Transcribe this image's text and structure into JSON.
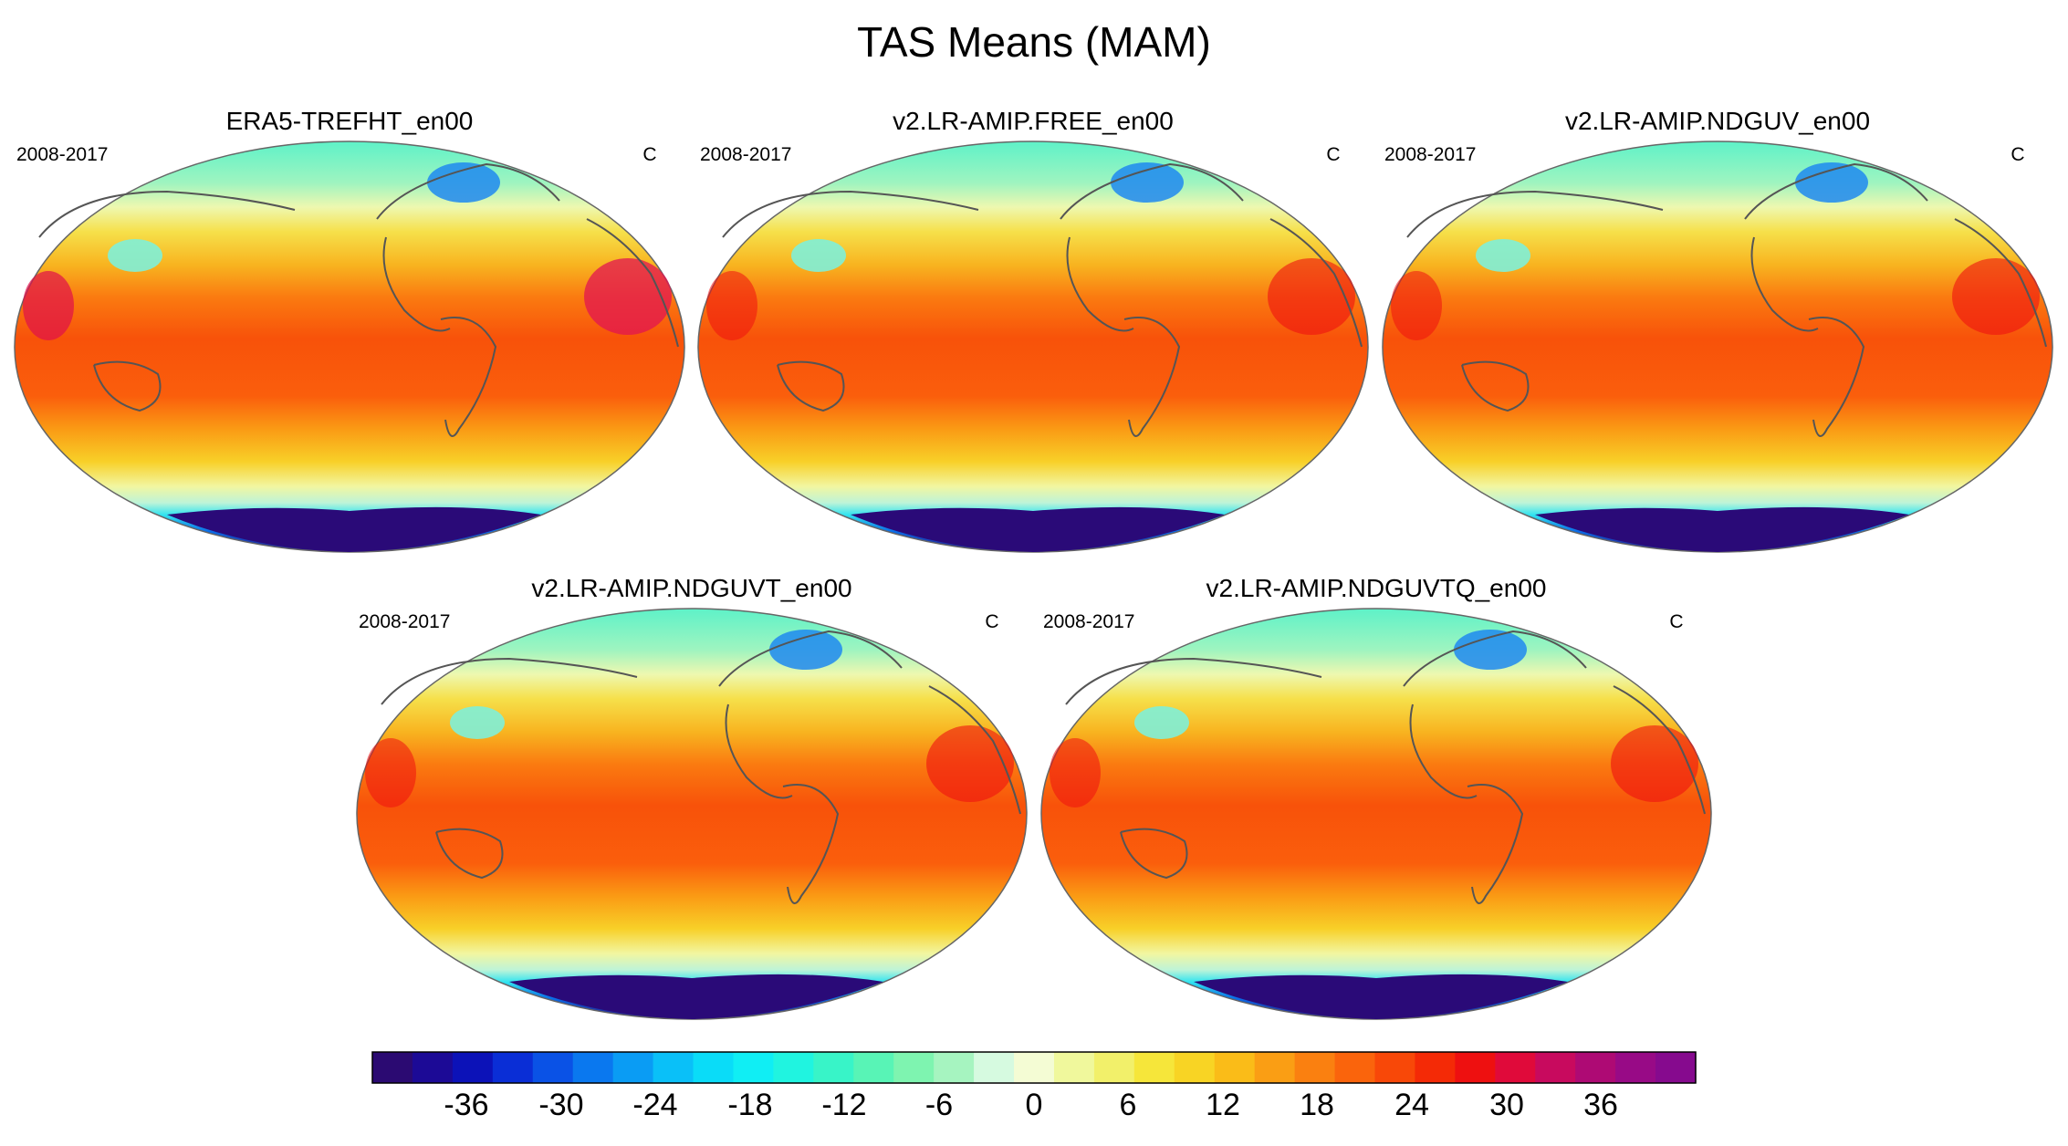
{
  "figure": {
    "title": "TAS Means (MAM)"
  },
  "panels": [
    {
      "title": "ERA5-TREFHT_en00",
      "period": "2008-2017",
      "units": "C"
    },
    {
      "title": "v2.LR-AMIP.FREE_en00",
      "period": "2008-2017",
      "units": "C"
    },
    {
      "title": "v2.LR-AMIP.NDGUV_en00",
      "period": "2008-2017",
      "units": "C"
    },
    {
      "title": "v2.LR-AMIP.NDGUVT_en00",
      "period": "2008-2017",
      "units": "C"
    },
    {
      "title": "v2.LR-AMIP.NDGUVTQ_en00",
      "period": "2008-2017",
      "units": "C"
    }
  ],
  "colorbar": {
    "tick_labels": [
      "-36",
      "-30",
      "-24",
      "-18",
      "-12",
      "-6",
      "0",
      "6",
      "12",
      "18",
      "24",
      "30",
      "36"
    ],
    "colors": [
      "#2b0a72",
      "#1c0a96",
      "#0c12b8",
      "#0a2ed6",
      "#0a52e6",
      "#0a78ef",
      "#0a9cf4",
      "#0ac0f8",
      "#0adcf8",
      "#10eef4",
      "#20f4e0",
      "#38f4c8",
      "#58f4b6",
      "#7ef4b0",
      "#a6f4c0",
      "#d6fae0",
      "#f4fcd4",
      "#f0f89c",
      "#f2f06a",
      "#f6e63a",
      "#f8d424",
      "#fabc18",
      "#fa9e14",
      "#fa8010",
      "#fa640c",
      "#f84808",
      "#f42a06",
      "#ee1010",
      "#e00a3a",
      "#c80a5e",
      "#ae0a74",
      "#980a86",
      "#860a8e"
    ]
  }
}
